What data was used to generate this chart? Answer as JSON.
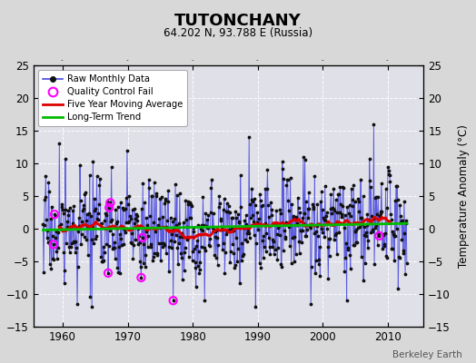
{
  "title": "TUTONCHANY",
  "subtitle": "64.202 N, 93.788 E (Russia)",
  "ylabel": "Temperature Anomaly (°C)",
  "watermark": "Berkeley Earth",
  "xlim": [
    1955.5,
    2015.5
  ],
  "ylim": [
    -15,
    25
  ],
  "yticks": [
    -15,
    -10,
    -5,
    0,
    5,
    10,
    15,
    20,
    25
  ],
  "xticks": [
    1960,
    1970,
    1980,
    1990,
    2000,
    2010
  ],
  "fig_bg_color": "#d8d8d8",
  "plot_bg_color": "#e0e0e8",
  "raw_line_color": "#4444dd",
  "raw_dot_color": "#111111",
  "ma_color": "#dd0000",
  "trend_color": "#00bb00",
  "qc_color": "#ff00ff",
  "seed": 17,
  "n_months": 672,
  "start_year": 1957.0,
  "noise_scale": 3.8,
  "n_qc_points": 9
}
